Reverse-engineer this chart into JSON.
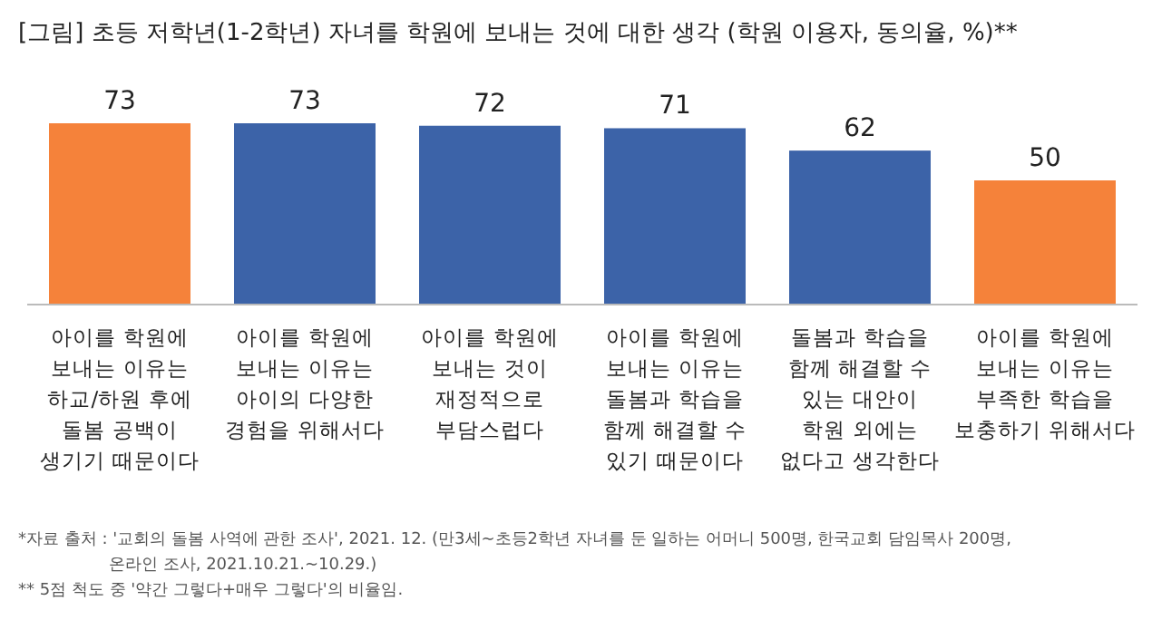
{
  "chart_data": {
    "type": "bar",
    "title": "[그림] 초등 저학년(1-2학년) 자녀를 학원에 보내는 것에 대한 생각 (학원 이용자, 동의율, %)**",
    "categories": [
      "아이를 학원에\n보내는 이유는\n하교/하원 후에\n돌봄 공백이\n생기기 때문이다",
      "아이를 학원에\n보내는 이유는\n아이의 다양한\n경험을 위해서다",
      "아이를 학원에\n보내는 것이\n재정적으로\n부담스럽다",
      "아이를 학원에\n보내는 이유는\n돌봄과 학습을\n함께 해결할 수\n있기 때문이다",
      "돌봄과 학습을\n함께 해결할 수\n있는 대안이\n학원 외에는\n없다고 생각한다",
      "아이를 학원에\n보내는 이유는\n부족한 학습을\n보충하기 위해서다"
    ],
    "values": [
      73,
      73,
      72,
      71,
      62,
      50
    ],
    "colors": [
      "#f5823a",
      "#3c63a8",
      "#3c63a8",
      "#3c63a8",
      "#3c63a8",
      "#f5823a"
    ],
    "data_labels": true,
    "annotations": [
      "*자료 출처 : '교회의 돌봄 사역에 관한 조사', 2021. 12. (만3세~초등2학년 자녀를 둔 일하는 어머니 500명, 한국교회 담임목사 200명,\n온라인 조사, 2021.10.21.~10.29.)",
      "** 5점 척도 중 '약간 그렇다+매우 그렇다'의 비율임."
    ]
  }
}
